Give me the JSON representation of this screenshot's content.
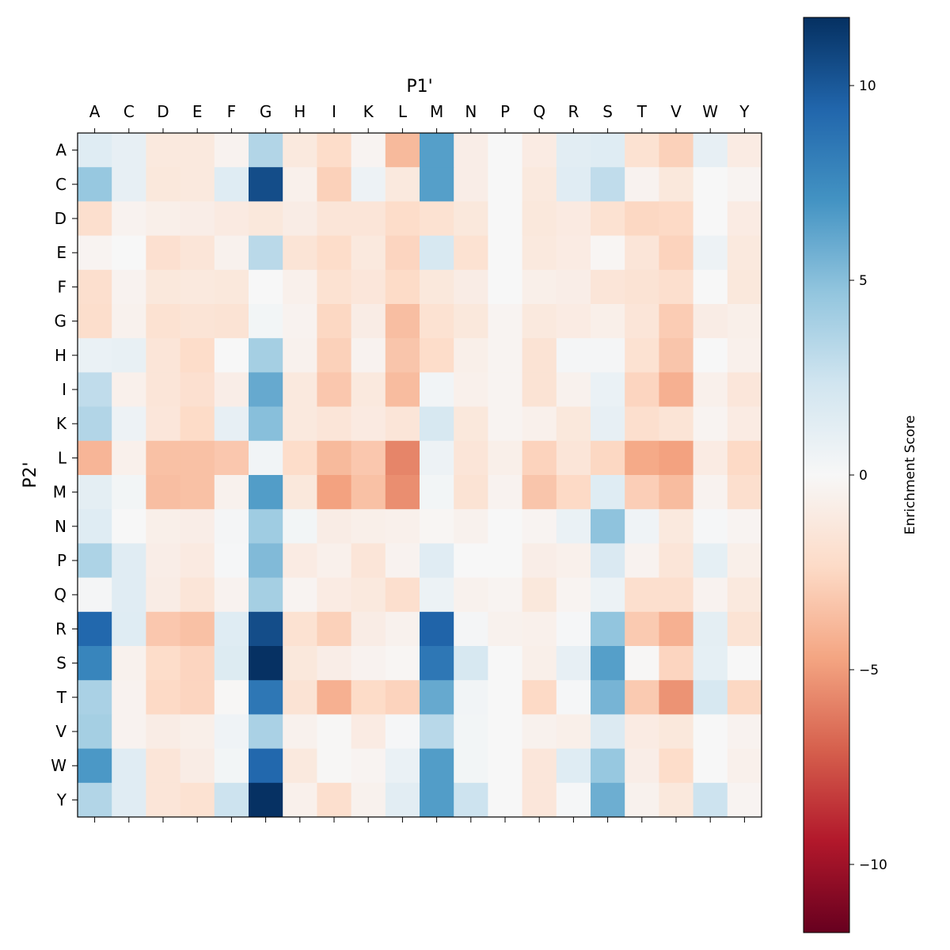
{
  "chart_data": {
    "type": "heatmap",
    "xlabel": "P1'",
    "ylabel": "P2'",
    "x_categories": [
      "A",
      "C",
      "D",
      "E",
      "F",
      "G",
      "H",
      "I",
      "K",
      "L",
      "M",
      "N",
      "P",
      "Q",
      "R",
      "S",
      "T",
      "V",
      "W",
      "Y"
    ],
    "y_categories": [
      "A",
      "C",
      "D",
      "E",
      "F",
      "G",
      "H",
      "I",
      "K",
      "L",
      "M",
      "N",
      "P",
      "Q",
      "R",
      "S",
      "T",
      "V",
      "W",
      "Y"
    ],
    "colormap": "RdBu",
    "vlim": [
      -11.75,
      11.75
    ],
    "colorbar": {
      "label": "Enrichment Score",
      "ticks": [
        10,
        5,
        0,
        -5,
        -10
      ],
      "tick_labels": [
        "10",
        "5",
        "0",
        "−5",
        "−10"
      ]
    },
    "values": [
      [
        1.5,
        1,
        -1.2,
        -1.2,
        -0.4,
        3.5,
        -1.2,
        -2.2,
        -0.3,
        -3.8,
        6.5,
        -0.8,
        0,
        -1,
        1.3,
        1.5,
        -1.8,
        -2.8,
        1,
        -1
      ],
      [
        4.5,
        1,
        -1.3,
        -1.2,
        1.5,
        10.5,
        -0.6,
        -2.8,
        0.6,
        -1.2,
        6.5,
        -0.8,
        0,
        -1.2,
        1.4,
        3,
        -0.4,
        -1.3,
        0,
        -0.3
      ],
      [
        -2,
        -0.4,
        -0.7,
        -0.8,
        -1.1,
        -1.3,
        -0.9,
        -1.5,
        -1.5,
        -2.2,
        -1.8,
        -1.3,
        0,
        -1.3,
        -1.1,
        -1.8,
        -2.5,
        -2.4,
        0,
        -1
      ],
      [
        -0.3,
        0,
        -1.9,
        -1.5,
        -0.5,
        3.2,
        -1.6,
        -2.2,
        -1.2,
        -2.6,
        2,
        -1.8,
        0,
        -1.2,
        -1,
        -0.2,
        -1.5,
        -2.7,
        0.6,
        -1.2
      ],
      [
        -2,
        -0.4,
        -1.3,
        -1.2,
        -1.3,
        0,
        -0.6,
        -1.8,
        -1.4,
        -2.3,
        -1.3,
        -0.9,
        0,
        -0.7,
        -0.8,
        -1.5,
        -1.7,
        -2,
        0,
        -1.3
      ],
      [
        -2.1,
        -0.5,
        -1.8,
        -1.6,
        -1.7,
        0.3,
        -0.4,
        -2.5,
        -0.9,
        -3.6,
        -1.8,
        -1.3,
        -0.3,
        -1.2,
        -1,
        -0.7,
        -1.5,
        -3,
        -0.9,
        -0.7
      ],
      [
        0.8,
        0.9,
        -1.5,
        -2.2,
        0,
        4,
        -0.5,
        -2.8,
        -0.4,
        -3.3,
        -2.2,
        -0.7,
        -0.3,
        -1.7,
        0.2,
        0.2,
        -1.8,
        -3.3,
        0,
        -0.6
      ],
      [
        3,
        -0.6,
        -1.5,
        -1.9,
        -0.8,
        6,
        -1.2,
        -3.2,
        -1.2,
        -3.7,
        0.4,
        -0.6,
        -0.3,
        -1.7,
        -0.5,
        0.8,
        -2.6,
        -4.2,
        -0.6,
        -1.4
      ],
      [
        3.5,
        0.6,
        -1.4,
        -2.3,
        1,
        5,
        -1.2,
        -1.5,
        -1.1,
        -1.5,
        2,
        -1.3,
        -0.3,
        -0.6,
        -1.3,
        1,
        -2,
        -1.6,
        -0.3,
        -1
      ],
      [
        -4,
        -0.6,
        -3.5,
        -3.5,
        -3.2,
        0.4,
        -2.2,
        -3.8,
        -3.2,
        -5.8,
        0.6,
        -1.5,
        -0.7,
        -2.7,
        -1.5,
        -2.5,
        -4.5,
        -4.8,
        -1,
        -2.4
      ],
      [
        1.2,
        0.3,
        -3.6,
        -3.5,
        -0.5,
        6.6,
        -1.3,
        -4.8,
        -3.5,
        -5.5,
        0.3,
        -1.7,
        -0.4,
        -3.3,
        -2.4,
        1.5,
        -2.9,
        -3.7,
        -0.4,
        -2
      ],
      [
        1.5,
        0,
        -0.7,
        -0.8,
        0.2,
        4.2,
        0.3,
        -0.9,
        -0.7,
        -0.6,
        -0.2,
        -0.5,
        0,
        -0.3,
        0.8,
        4.8,
        0.5,
        -1.2,
        0.1,
        -0.3
      ],
      [
        3.7,
        1.4,
        -0.8,
        -1.1,
        0.1,
        5.2,
        -1,
        -0.6,
        -1.5,
        -0.4,
        1.4,
        0,
        0,
        -0.8,
        -0.6,
        1.8,
        -0.4,
        -1.5,
        1.1,
        -0.7
      ],
      [
        0.2,
        1.4,
        -0.9,
        -1.5,
        -0.4,
        4,
        -0.3,
        -1,
        -1.2,
        -2,
        0.7,
        -0.5,
        -0.3,
        -1.3,
        -0.3,
        0.7,
        -2,
        -2,
        -0.4,
        -1.2
      ],
      [
        9.3,
        1.5,
        -3.2,
        -3.5,
        1.5,
        10.5,
        -1.8,
        -2.8,
        -0.9,
        -0.5,
        9.5,
        0.2,
        -0.5,
        -0.6,
        0.1,
        4.7,
        -3.1,
        -4.2,
        1.2,
        -1.7
      ],
      [
        7.8,
        -0.5,
        -2.2,
        -2.6,
        1.6,
        11.7,
        -1.3,
        -0.8,
        -0.4,
        -0.2,
        8.5,
        2,
        0,
        -0.7,
        1,
        6.5,
        -0.1,
        -2.6,
        1.1,
        0
      ],
      [
        3.8,
        -0.4,
        -2.4,
        -2.6,
        -0.1,
        8.5,
        -1.7,
        -4.2,
        -2.3,
        -2.7,
        6,
        0.4,
        0,
        -2.4,
        0.1,
        5.5,
        -3.1,
        -5.3,
        2,
        -2.5
      ],
      [
        4,
        -0.4,
        -0.9,
        -0.7,
        0.5,
        3.8,
        -0.5,
        -0.1,
        -1,
        0.1,
        3.3,
        0.3,
        0,
        -0.5,
        -0.7,
        1.7,
        -1,
        -1.3,
        0,
        -0.4
      ],
      [
        6.8,
        1.4,
        -1.5,
        -0.9,
        0.3,
        9.3,
        -1.2,
        -0.1,
        -0.3,
        0.8,
        6.6,
        0.3,
        0,
        -1.4,
        1.5,
        4.5,
        -0.8,
        -2.2,
        0,
        -0.6
      ],
      [
        3.5,
        1.4,
        -1.5,
        -1.8,
        2.5,
        11.7,
        -0.6,
        -2,
        -0.5,
        1.3,
        6.6,
        2.5,
        0,
        -1.4,
        0.1,
        5.8,
        -0.5,
        -1.3,
        2.5,
        -0.3
      ]
    ]
  }
}
